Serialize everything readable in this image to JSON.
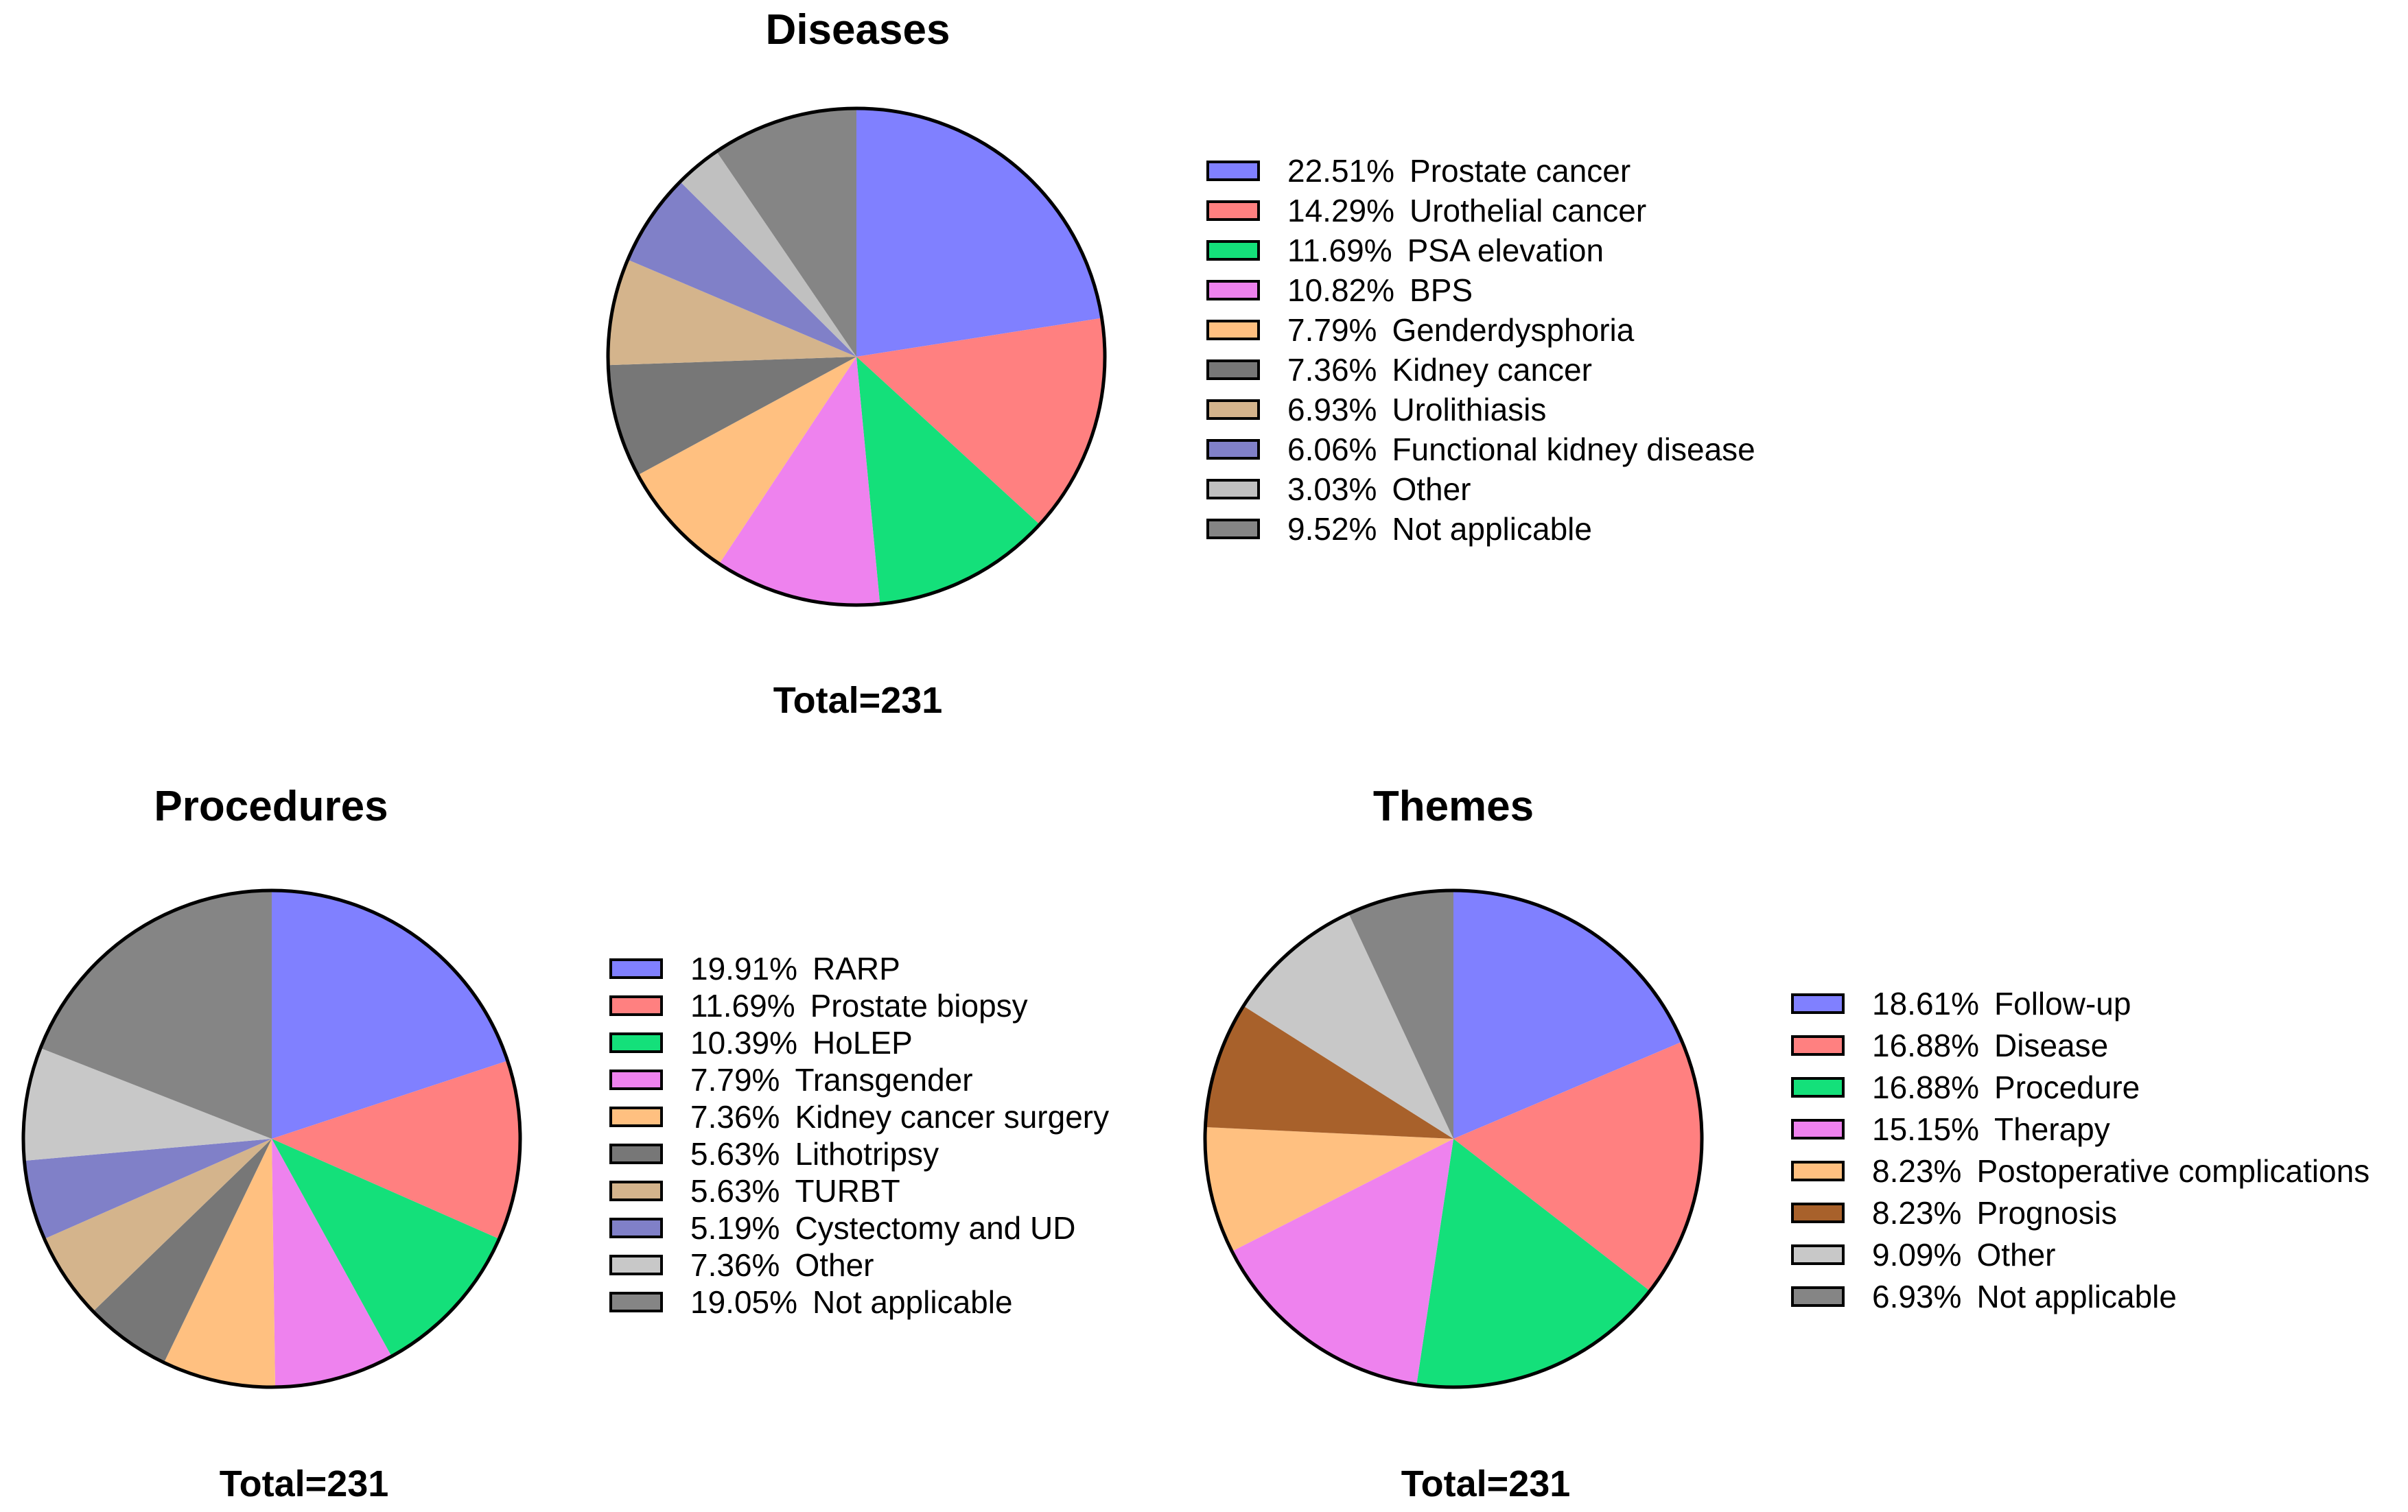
{
  "chart_data": [
    {
      "type": "pie",
      "title": "Diseases",
      "total_label": "Total=231",
      "slices": [
        {
          "label": "Prostate cancer",
          "value": 22.51,
          "display": "22.51%",
          "color": "#8080FF"
        },
        {
          "label": "Urothelial cancer",
          "value": 14.29,
          "display": "14.29%",
          "color": "#FF8080"
        },
        {
          "label": "PSA elevation",
          "value": 11.69,
          "display": "11.69%",
          "color": "#14E07A"
        },
        {
          "label": "BPS",
          "value": 10.82,
          "display": "10.82%",
          "color": "#EE82EE"
        },
        {
          "label": "Genderdysphoria",
          "value": 7.79,
          "display": "7.79%",
          "color": "#FFC080"
        },
        {
          "label": "Kidney cancer",
          "value": 7.36,
          "display": "7.36%",
          "color": "#777777"
        },
        {
          "label": "Urolithiasis",
          "value": 6.93,
          "display": "6.93%",
          "color": "#D4B48C"
        },
        {
          "label": "Functional kidney disease",
          "value": 6.06,
          "display": "6.06%",
          "color": "#8080C8"
        },
        {
          "label": "Other",
          "value": 3.03,
          "display": "3.03%",
          "color": "#C0C0C0"
        },
        {
          "label": "Not applicable",
          "value": 9.52,
          "display": "9.52%",
          "color": "#858585"
        }
      ]
    },
    {
      "type": "pie",
      "title": "Procedures",
      "total_label": "Total=231",
      "slices": [
        {
          "label": "RARP",
          "value": 19.91,
          "display": "19.91%",
          "color": "#8080FF"
        },
        {
          "label": "Prostate biopsy",
          "value": 11.69,
          "display": "11.69%",
          "color": "#FF8080"
        },
        {
          "label": "HoLEP",
          "value": 10.39,
          "display": "10.39%",
          "color": "#14E07A"
        },
        {
          "label": "Transgender",
          "value": 7.79,
          "display": "7.79%",
          "color": "#EE82EE"
        },
        {
          "label": "Kidney cancer surgery",
          "value": 7.36,
          "display": "7.36%",
          "color": "#FFC080"
        },
        {
          "label": "Lithotripsy",
          "value": 5.63,
          "display": "5.63%",
          "color": "#777777"
        },
        {
          "label": "TURBT",
          "value": 5.63,
          "display": "5.63%",
          "color": "#D4B48C"
        },
        {
          "label": "Cystectomy and UD",
          "value": 5.19,
          "display": "5.19%",
          "color": "#8080C8"
        },
        {
          "label": "Other",
          "value": 7.36,
          "display": "7.36%",
          "color": "#C8C8C8"
        },
        {
          "label": "Not applicable",
          "value": 19.05,
          "display": "19.05%",
          "color": "#858585"
        }
      ]
    },
    {
      "type": "pie",
      "title": "Themes",
      "total_label": "Total=231",
      "slices": [
        {
          "label": "Follow-up",
          "value": 18.61,
          "display": "18.61%",
          "color": "#8080FF"
        },
        {
          "label": "Disease",
          "value": 16.88,
          "display": "16.88%",
          "color": "#FF8080"
        },
        {
          "label": "Procedure",
          "value": 16.88,
          "display": "16.88%",
          "color": "#14E07A"
        },
        {
          "label": "Therapy",
          "value": 15.15,
          "display": "15.15%",
          "color": "#EE82EE"
        },
        {
          "label": "Postoperative complications",
          "value": 8.23,
          "display": "8.23%",
          "color": "#FFC080"
        },
        {
          "label": "Prognosis",
          "value": 8.23,
          "display": "8.23%",
          "color": "#A8612B"
        },
        {
          "label": "Other",
          "value": 9.09,
          "display": "9.09%",
          "color": "#C8C8C8"
        },
        {
          "label": "Not applicable",
          "value": 6.93,
          "display": "6.93%",
          "color": "#858585"
        }
      ]
    }
  ]
}
